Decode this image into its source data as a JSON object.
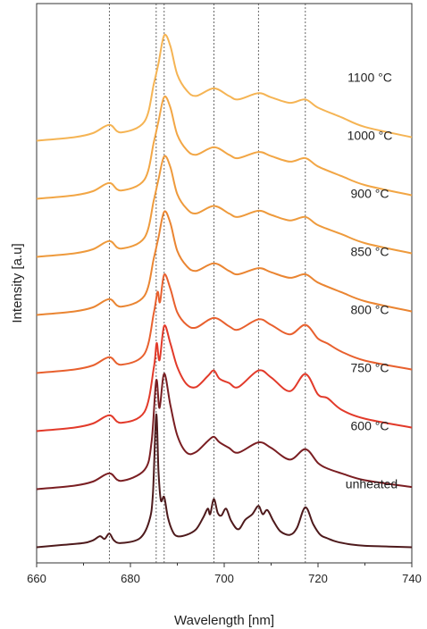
{
  "chart_data": {
    "type": "line",
    "title": "",
    "xlabel": "Wavelength [nm]",
    "ylabel": "Intensity [a.u]",
    "xlim": [
      660,
      740
    ],
    "xticks": [
      "660",
      "680",
      "700",
      "720",
      "740"
    ],
    "yticks_shown": false,
    "legend": "inline labels at right end of each curve",
    "reference_lines_nm": [
      675.5,
      685.5,
      687.2,
      697.8,
      707.3,
      717.3
    ],
    "series": [
      {
        "name": "1100 °C",
        "color": "#f5b454",
        "offset": 7,
        "x": [
          660,
          668,
          672,
          675.5,
          678,
          683,
          685,
          686,
          687.2,
          688.5,
          690,
          692,
          694,
          697.8,
          701,
          703,
          707.3,
          710,
          714,
          717.3,
          720,
          725,
          730,
          740
        ],
        "y": [
          0.02,
          0.07,
          0.13,
          0.25,
          0.14,
          0.3,
          0.85,
          1.15,
          1.55,
          1.4,
          0.98,
          0.75,
          0.67,
          0.78,
          0.67,
          0.62,
          0.71,
          0.65,
          0.57,
          0.62,
          0.5,
          0.36,
          0.22,
          0.07
        ]
      },
      {
        "name": "1000 °C",
        "color": "#f2a645",
        "offset": 6,
        "x": [
          660,
          668,
          672,
          675.5,
          678,
          683,
          685,
          686,
          687.2,
          688.5,
          690,
          692,
          694,
          697.8,
          701,
          703,
          707.3,
          710,
          714,
          717.3,
          720,
          725,
          730,
          740
        ],
        "y": [
          0.02,
          0.07,
          0.13,
          0.25,
          0.14,
          0.3,
          0.85,
          1.15,
          1.5,
          1.35,
          0.95,
          0.73,
          0.66,
          0.77,
          0.66,
          0.61,
          0.7,
          0.64,
          0.56,
          0.61,
          0.49,
          0.35,
          0.22,
          0.07
        ]
      },
      {
        "name": "900 °C",
        "color": "#ee9a3c",
        "offset": 5,
        "x": [
          660,
          668,
          672,
          675.5,
          678,
          683,
          685,
          686,
          687.2,
          688.5,
          690,
          692,
          694,
          697.8,
          701,
          703,
          707.3,
          710,
          714,
          717.3,
          720,
          725,
          730,
          740
        ],
        "y": [
          0.02,
          0.07,
          0.13,
          0.25,
          0.14,
          0.3,
          0.85,
          1.15,
          1.48,
          1.33,
          0.93,
          0.72,
          0.65,
          0.76,
          0.65,
          0.6,
          0.69,
          0.63,
          0.55,
          0.6,
          0.48,
          0.35,
          0.22,
          0.07
        ]
      },
      {
        "name": "850 °C",
        "color": "#ea8532",
        "offset": 4,
        "x": [
          660,
          668,
          672,
          675.5,
          678,
          683,
          685,
          686,
          687.2,
          688.5,
          690,
          692,
          694,
          697.8,
          701,
          703,
          707.3,
          710,
          714,
          717.3,
          720,
          725,
          730,
          740
        ],
        "y": [
          0.02,
          0.07,
          0.13,
          0.25,
          0.14,
          0.3,
          0.85,
          1.15,
          1.52,
          1.36,
          0.95,
          0.73,
          0.66,
          0.77,
          0.66,
          0.61,
          0.7,
          0.64,
          0.56,
          0.61,
          0.49,
          0.35,
          0.22,
          0.07
        ]
      },
      {
        "name": "800 °C",
        "color": "#e8602e",
        "offset": 3,
        "x": [
          660,
          668,
          672,
          675.5,
          678,
          683,
          685,
          685.8,
          686.3,
          687.2,
          688.5,
          690,
          692,
          694,
          697.8,
          701,
          703,
          707.3,
          710,
          714,
          717.3,
          720,
          722,
          725,
          730,
          740
        ],
        "y": [
          0.02,
          0.07,
          0.13,
          0.25,
          0.14,
          0.3,
          0.9,
          1.2,
          1.05,
          1.45,
          1.25,
          0.9,
          0.72,
          0.68,
          0.82,
          0.7,
          0.65,
          0.8,
          0.72,
          0.58,
          0.72,
          0.52,
          0.45,
          0.33,
          0.2,
          0.07
        ]
      },
      {
        "name": "750 °C",
        "color": "#e23a2a",
        "offset": 2,
        "x": [
          660,
          668,
          672,
          675.5,
          678,
          683,
          685,
          685.6,
          686.2,
          687.2,
          688.5,
          690,
          692,
          694,
          696.5,
          697.8,
          699,
          701,
          703,
          707.3,
          710,
          714,
          717.3,
          720,
          722,
          725,
          730,
          740
        ],
        "y": [
          0.02,
          0.07,
          0.13,
          0.25,
          0.14,
          0.3,
          0.95,
          1.3,
          1.05,
          1.55,
          1.3,
          0.95,
          0.7,
          0.66,
          0.82,
          0.9,
          0.78,
          0.72,
          0.66,
          0.9,
          0.8,
          0.6,
          0.85,
          0.55,
          0.5,
          0.33,
          0.2,
          0.07
        ]
      },
      {
        "name": "600 °C",
        "color": "#7a1e22",
        "offset": 1,
        "x": [
          660,
          668,
          672,
          675.5,
          678,
          683,
          684.5,
          685.5,
          686.2,
          687.2,
          688.5,
          690,
          692,
          694,
          696.5,
          697.8,
          699,
          701,
          703,
          707.3,
          710,
          714,
          717.3,
          720,
          722,
          725,
          730,
          740
        ],
        "y": [
          0.02,
          0.07,
          0.13,
          0.25,
          0.14,
          0.3,
          0.7,
          1.6,
          1.2,
          1.7,
          1.25,
          0.8,
          0.55,
          0.56,
          0.72,
          0.78,
          0.7,
          0.62,
          0.55,
          0.7,
          0.62,
          0.45,
          0.6,
          0.4,
          0.32,
          0.25,
          0.15,
          0.05
        ]
      },
      {
        "name": "unheated",
        "color": "#4e1a1c",
        "offset": 0,
        "x": [
          660,
          665,
          670,
          672,
          673.5,
          674.5,
          675.5,
          676.5,
          678,
          682,
          684,
          684.8,
          685.5,
          686.0,
          686.5,
          687.2,
          688,
          689,
          690,
          692,
          694,
          695.5,
          696.5,
          697,
          697.8,
          698.6,
          699.4,
          700.4,
          701.5,
          703,
          704.5,
          706,
          707.3,
          708.2,
          709.2,
          710.5,
          712,
          714,
          715.5,
          717.3,
          719,
          720.5,
          722,
          724,
          727,
          730,
          735,
          740
        ],
        "y": [
          0.02,
          0.05,
          0.08,
          0.12,
          0.18,
          0.14,
          0.22,
          0.12,
          0.08,
          0.15,
          0.4,
          0.8,
          1.95,
          1.1,
          0.7,
          0.75,
          0.45,
          0.25,
          0.18,
          0.2,
          0.28,
          0.45,
          0.58,
          0.5,
          0.72,
          0.52,
          0.48,
          0.58,
          0.4,
          0.28,
          0.42,
          0.5,
          0.62,
          0.5,
          0.56,
          0.4,
          0.25,
          0.2,
          0.3,
          0.6,
          0.35,
          0.2,
          0.15,
          0.1,
          0.06,
          0.04,
          0.03,
          0.02
        ]
      }
    ]
  }
}
